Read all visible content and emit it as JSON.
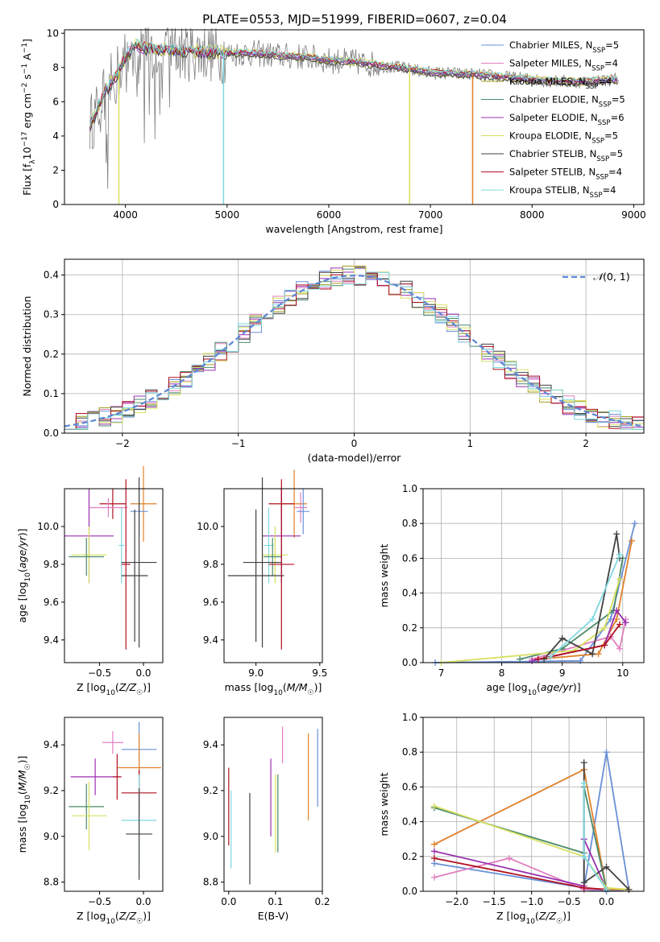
{
  "figure": {
    "title": "PLATE=0553, MJD=51999, FIBERID=0607, z=0.04"
  },
  "legend_entries": [
    {
      "label": "Chabrier MILES, N",
      "sub": "SSP",
      "tail": "=5",
      "color": "#6a8fd8"
    },
    {
      "label": "Salpeter MILES, N",
      "sub": "SSP",
      "tail": "=4",
      "color": "#e07fc0"
    },
    {
      "label": "Kroupa MILES, N",
      "sub": "SSP",
      "tail": "=4",
      "color": "#a0a020"
    },
    {
      "label": "Chabrier ELODIE, N",
      "sub": "SSP",
      "tail": "=5",
      "color": "#4a8a6a"
    },
    {
      "label": "Salpeter ELODIE, N",
      "sub": "SSP",
      "tail": "=6",
      "color": "#9a30b0"
    },
    {
      "label": "Kroupa ELODIE, N",
      "sub": "SSP",
      "tail": "=5",
      "color": "#d8e060"
    },
    {
      "label": "Chabrier STELIB, N",
      "sub": "SSP",
      "tail": "=5",
      "color": "#404040"
    },
    {
      "label": "Salpeter STELIB, N",
      "sub": "SSP",
      "tail": "=4",
      "color": "#b01020"
    },
    {
      "label": "Kroupa STELIB, N",
      "sub": "SSP",
      "tail": "=4",
      "color": "#7fd8e0"
    }
  ],
  "colors": {
    "c1": "#6a8fd8",
    "c2": "#e07fc0",
    "c3": "#e0802a",
    "c4": "#4a8a6a",
    "c5": "#9a30b0",
    "c6": "#d8e060",
    "c7": "#404040",
    "c8": "#b01020",
    "c9": "#7fd8e0",
    "data": "#808080",
    "grid": "#b0b0b0",
    "normal": "#5b86d6"
  },
  "chart_data": [
    {
      "type": "line",
      "title": "PLATE=0553, MJD=51999, FIBERID=0607, z=0.04",
      "xlabel": "wavelength [Angstrom, rest frame]",
      "ylabel": "Flux [f_λ 10^-17 erg cm^-2 s^-1 A^-1]",
      "xlim": [
        3400,
        9100
      ],
      "ylim": [
        0,
        10.2
      ],
      "xticks": [
        4000,
        5000,
        6000,
        7000,
        8000,
        9000
      ],
      "yticks": [
        0,
        2,
        4,
        6,
        8,
        10
      ],
      "grid": false,
      "legend": "upper right",
      "continuum_x": [
        3650,
        3700,
        3800,
        3900,
        4000,
        4100,
        4200,
        4400,
        4600,
        4800,
        5000,
        5200,
        5400,
        5600,
        5800,
        6000,
        6200,
        6400,
        6600,
        6800,
        7000,
        7200,
        7400,
        7600,
        7800,
        8000,
        8200,
        8400,
        8600,
        8800
      ],
      "continuum_y": [
        4.7,
        5.2,
        6.6,
        7.4,
        8.6,
        9.3,
        9.1,
        9.0,
        8.95,
        8.9,
        8.8,
        8.85,
        8.75,
        8.65,
        8.6,
        8.4,
        8.35,
        8.2,
        8.05,
        7.9,
        7.7,
        7.65,
        7.6,
        7.5,
        7.4,
        7.3,
        7.2,
        7.15,
        7.2,
        7.3
      ],
      "dips": [
        {
          "x": 3935,
          "model": "Kroupa ELODIE",
          "y": 0
        },
        {
          "x": 4965,
          "model": "Kroupa STELIB",
          "y": 0
        },
        {
          "x": 6795,
          "model": "Kroupa ELODIE",
          "y": 0
        },
        {
          "x": 7415,
          "model": "Kroupa MILES",
          "y": 0
        }
      ]
    },
    {
      "type": "histogram",
      "xlabel": "(data-model)/error",
      "ylabel": "Normed distribution",
      "xlim": [
        -2.5,
        2.5
      ],
      "ylim": [
        0,
        0.44
      ],
      "xticks": [
        -2,
        -1,
        0,
        1,
        2
      ],
      "yticks": [
        0.0,
        0.1,
        0.2,
        0.3,
        0.4
      ],
      "grid": true,
      "bin_width": 0.1,
      "reference_curve": "N(0,1)",
      "legend": "upper right"
    },
    {
      "type": "scatter",
      "xlabel": "Z [log10(Z/Z☉)]",
      "ylabel": "age  [log10(age/yr)]",
      "xlim": [
        -0.9,
        0.22
      ],
      "ylim": [
        9.28,
        10.2
      ],
      "xticks": [
        -0.5,
        0.0
      ],
      "yticks": [
        9.4,
        9.6,
        9.8,
        10.0
      ],
      "points": [
        {
          "x": 0.0,
          "y": 10.12,
          "xerr": 0.15,
          "yerr": 0.2,
          "color": "#e0802a"
        },
        {
          "x": -0.35,
          "y": 10.12,
          "xerr": 0.15,
          "yerr": 0.08,
          "color": "#b01020"
        },
        {
          "x": -0.4,
          "y": 10.1,
          "xerr": 0.22,
          "yerr": 0.05,
          "color": "#e07fc0"
        },
        {
          "x": -0.05,
          "y": 10.08,
          "xerr": 0.1,
          "yerr": 0.12,
          "color": "#6a8fd8"
        },
        {
          "x": -0.62,
          "y": 9.95,
          "xerr": 0.28,
          "yerr": 0.25,
          "color": "#9a30b0"
        },
        {
          "x": -0.25,
          "y": 9.9,
          "xerr": 0.03,
          "yerr": 0.2,
          "color": "#7fd8e0"
        },
        {
          "x": -0.62,
          "y": 9.85,
          "xerr": 0.2,
          "yerr": 0.15,
          "color": "#d8e060"
        },
        {
          "x": -0.65,
          "y": 9.84,
          "xerr": 0.2,
          "yerr": 0.1,
          "color": "#4a8a6a"
        },
        {
          "x": -0.05,
          "y": 9.81,
          "xerr": 0.2,
          "yerr": 0.45,
          "color": "#404040"
        },
        {
          "x": -0.1,
          "y": 9.74,
          "xerr": 0.15,
          "yerr": 0.35,
          "color": "#404040"
        },
        {
          "x": -0.2,
          "y": 9.8,
          "xerr": 0.05,
          "yerr": 0.45,
          "color": "#b01020"
        }
      ]
    },
    {
      "type": "scatter",
      "xlabel": "mass [log10(M/M☉)]",
      "xlim": [
        8.75,
        9.52
      ],
      "ylim": [
        9.28,
        10.2
      ],
      "xticks": [
        9.0,
        9.5
      ],
      "yticks": [
        9.4,
        9.6,
        9.8,
        10.0
      ],
      "points": [
        {
          "x": 9.3,
          "y": 10.12,
          "xerr": 0.1,
          "yerr": 0.18,
          "color": "#e0802a"
        },
        {
          "x": 9.2,
          "y": 10.12,
          "xerr": 0.1,
          "yerr": 0.08,
          "color": "#b01020"
        },
        {
          "x": 9.35,
          "y": 10.1,
          "xerr": 0.05,
          "yerr": 0.08,
          "color": "#e07fc0"
        },
        {
          "x": 9.37,
          "y": 10.08,
          "xerr": 0.05,
          "yerr": 0.12,
          "color": "#6a8fd8"
        },
        {
          "x": 9.2,
          "y": 9.95,
          "xerr": 0.15,
          "yerr": 0.25,
          "color": "#9a30b0"
        },
        {
          "x": 9.1,
          "y": 9.9,
          "xerr": 0.04,
          "yerr": 0.2,
          "color": "#7fd8e0"
        },
        {
          "x": 9.15,
          "y": 9.85,
          "xerr": 0.1,
          "yerr": 0.15,
          "color": "#d8e060"
        },
        {
          "x": 9.13,
          "y": 9.84,
          "xerr": 0.07,
          "yerr": 0.1,
          "color": "#4a8a6a"
        },
        {
          "x": 9.05,
          "y": 9.81,
          "xerr": 0.15,
          "yerr": 0.45,
          "color": "#404040"
        },
        {
          "x": 9.0,
          "y": 9.74,
          "xerr": 0.22,
          "yerr": 0.35,
          "color": "#404040"
        },
        {
          "x": 9.2,
          "y": 9.8,
          "xerr": 0.1,
          "yerr": 0.45,
          "color": "#b01020"
        }
      ]
    },
    {
      "type": "line",
      "xlabel": "age  [log10(age/yr)]",
      "ylabel": "mass weight",
      "xlim": [
        6.7,
        10.35
      ],
      "ylim": [
        0,
        1.0
      ],
      "xticks": [
        7,
        8,
        9,
        10
      ],
      "yticks": [
        0.0,
        0.2,
        0.4,
        0.6,
        0.8,
        1.0
      ],
      "grid": true,
      "series": [
        {
          "color": "#6a8fd8",
          "x": [
            6.9,
            9.3,
            9.8,
            10.2
          ],
          "y": [
            0.0,
            0.01,
            0.25,
            0.8
          ]
        },
        {
          "color": "#e07fc0",
          "x": [
            8.5,
            9.8,
            9.95,
            10.05
          ],
          "y": [
            0.02,
            0.15,
            0.08,
            0.25
          ]
        },
        {
          "color": "#e0802a",
          "x": [
            8.6,
            9.6,
            9.9,
            10.15
          ],
          "y": [
            0.02,
            0.05,
            0.25,
            0.7
          ]
        },
        {
          "color": "#4a8a6a",
          "x": [
            8.3,
            9.0,
            9.85,
            10.0
          ],
          "y": [
            0.02,
            0.08,
            0.3,
            0.6
          ]
        },
        {
          "color": "#9a30b0",
          "x": [
            8.5,
            9.7,
            9.9,
            10.05
          ],
          "y": [
            0.01,
            0.1,
            0.3,
            0.23
          ]
        },
        {
          "color": "#d8e060",
          "x": [
            7.0,
            9.2,
            9.7,
            9.95
          ],
          "y": [
            0.0,
            0.07,
            0.2,
            0.48
          ]
        },
        {
          "color": "#404040",
          "x": [
            8.7,
            9.0,
            9.5,
            9.9,
            9.95
          ],
          "y": [
            0.02,
            0.14,
            0.05,
            0.74,
            0.6
          ]
        },
        {
          "color": "#b01020",
          "x": [
            8.6,
            9.7,
            9.95
          ],
          "y": [
            0.02,
            0.1,
            0.22
          ]
        },
        {
          "color": "#7fd8e0",
          "x": [
            8.8,
            9.5,
            9.95
          ],
          "y": [
            0.03,
            0.25,
            0.62
          ]
        }
      ]
    },
    {
      "type": "scatter",
      "xlabel": "Z [log10(Z/Z☉)]",
      "ylabel": "mass [log10(M/M☉)]",
      "xlim": [
        -0.9,
        0.22
      ],
      "ylim": [
        8.76,
        9.52
      ],
      "xticks": [
        -0.5,
        0.0
      ],
      "yticks": [
        8.8,
        9.0,
        9.2,
        9.4
      ],
      "points": [
        {
          "x": -0.35,
          "y": 9.41,
          "xerr": 0.12,
          "yerr": 0.05,
          "color": "#e07fc0"
        },
        {
          "x": -0.05,
          "y": 9.38,
          "xerr": 0.2,
          "yerr": 0.12,
          "color": "#6a8fd8"
        },
        {
          "x": -0.05,
          "y": 9.3,
          "xerr": 0.25,
          "yerr": 0.15,
          "color": "#e0802a"
        },
        {
          "x": -0.55,
          "y": 9.26,
          "xerr": 0.28,
          "yerr": 0.08,
          "color": "#9a30b0"
        },
        {
          "x": -0.3,
          "y": 9.26,
          "xerr": 0.05,
          "yerr": 0.1,
          "color": "#b01020"
        },
        {
          "x": -0.05,
          "y": 9.19,
          "xerr": 0.2,
          "yerr": 0.1,
          "color": "#b01020"
        },
        {
          "x": -0.65,
          "y": 9.13,
          "xerr": 0.2,
          "yerr": 0.1,
          "color": "#4a8a6a"
        },
        {
          "x": -0.62,
          "y": 9.09,
          "xerr": 0.2,
          "yerr": 0.15,
          "color": "#d8e060"
        },
        {
          "x": -0.05,
          "y": 9.07,
          "xerr": 0.2,
          "yerr": 0.2,
          "color": "#7fd8e0"
        },
        {
          "x": -0.05,
          "y": 9.01,
          "xerr": 0.15,
          "yerr": 0.2,
          "color": "#404040"
        }
      ]
    },
    {
      "type": "scatter",
      "xlabel": "E(B-V)",
      "xlim": [
        -0.01,
        0.2
      ],
      "ylim": [
        8.76,
        9.52
      ],
      "xticks": [
        0.0,
        0.1,
        0.2
      ],
      "yticks": [
        8.8,
        9.0,
        9.2,
        9.4
      ],
      "points": [
        {
          "x": 0.0,
          "y": 9.13,
          "yerr": 0.17,
          "color": "#b01020"
        },
        {
          "x": 0.005,
          "y": 9.03,
          "yerr": 0.17,
          "color": "#7fd8e0"
        },
        {
          "x": 0.045,
          "y": 8.99,
          "yerr": 0.2,
          "color": "#404040"
        },
        {
          "x": 0.09,
          "y": 9.17,
          "yerr": 0.17,
          "color": "#9a30b0"
        },
        {
          "x": 0.1,
          "y": 9.1,
          "yerr": 0.17,
          "color": "#d8e060"
        },
        {
          "x": 0.105,
          "y": 9.1,
          "yerr": 0.17,
          "color": "#4a8a6a"
        },
        {
          "x": 0.115,
          "y": 9.4,
          "yerr": 0.08,
          "color": "#e07fc0"
        },
        {
          "x": 0.17,
          "y": 9.26,
          "yerr": 0.19,
          "color": "#e0802a"
        },
        {
          "x": 0.19,
          "y": 9.3,
          "yerr": 0.17,
          "color": "#6a8fd8"
        }
      ]
    },
    {
      "type": "line",
      "xlabel": "Z [log10(Z/Z☉)]",
      "ylabel": "mass weight",
      "xlim": [
        -2.45,
        0.5
      ],
      "ylim": [
        0,
        1.0
      ],
      "xticks": [
        -2.0,
        -1.5,
        -1.0,
        -0.5,
        0.0
      ],
      "yticks": [
        0.0,
        0.2,
        0.4,
        0.6,
        0.8,
        1.0
      ],
      "grid": true,
      "series": [
        {
          "color": "#6a8fd8",
          "x": [
            -2.3,
            -0.3,
            0.0,
            0.3,
            0.0,
            -0.3
          ],
          "y": [
            0.16,
            0.02,
            0.8,
            0.01,
            0.0,
            0.01
          ]
        },
        {
          "color": "#e07fc0",
          "x": [
            -2.3,
            -1.3,
            -0.3,
            0.0
          ],
          "y": [
            0.08,
            0.19,
            0.01,
            0.01
          ]
        },
        {
          "color": "#e0802a",
          "x": [
            -2.3,
            -0.3,
            0.0,
            0.3
          ],
          "y": [
            0.27,
            0.7,
            0.01,
            0.01
          ]
        },
        {
          "color": "#4a8a6a",
          "x": [
            -2.3,
            -0.3,
            -0.3,
            0.0
          ],
          "y": [
            0.48,
            0.22,
            0.6,
            0.01
          ]
        },
        {
          "color": "#9a30b0",
          "x": [
            -2.3,
            -0.3,
            -0.3,
            0.0
          ],
          "y": [
            0.23,
            0.03,
            0.3,
            0.01
          ]
        },
        {
          "color": "#d8e060",
          "x": [
            -2.3,
            -0.3,
            0.0,
            0.3
          ],
          "y": [
            0.49,
            0.2,
            0.02,
            0.01
          ]
        },
        {
          "color": "#404040",
          "x": [
            -0.3,
            -0.3,
            0.0,
            0.3
          ],
          "y": [
            0.74,
            0.05,
            0.14,
            0.01
          ]
        },
        {
          "color": "#b01020",
          "x": [
            -2.3,
            -0.3,
            0.0
          ],
          "y": [
            0.19,
            0.02,
            0.01
          ]
        },
        {
          "color": "#7fd8e0",
          "x": [
            -0.3,
            -0.3,
            0.0
          ],
          "y": [
            0.62,
            0.2,
            0.01
          ]
        }
      ]
    }
  ]
}
